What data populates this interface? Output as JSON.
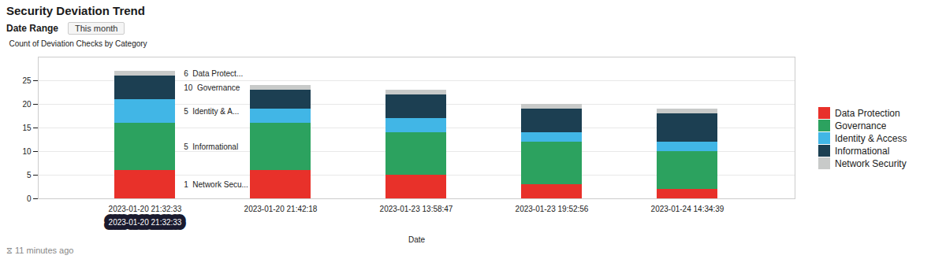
{
  "chart_data": {
    "type": "bar",
    "stacked": true,
    "title": "Security Deviation Trend",
    "subtitle": "Date Range",
    "filter": "This month",
    "caption": "⧖ 11 minutes ago",
    "xlabel": "Date",
    "ylabel": "Count of Deviation Checks by Category",
    "categories": [
      "2023-01-20 21:32:33",
      "2023-01-20 21:42:18",
      "2023-01-23 13:58:47",
      "2023-01-23 19:52:56",
      "2023-01-24 14:34:39"
    ],
    "series": [
      {
        "name": "Data Protection",
        "color": "#e8312a",
        "values": [
          6,
          6,
          5,
          3,
          2
        ]
      },
      {
        "name": "Governance",
        "color": "#2ca25f",
        "values": [
          10,
          10,
          9,
          9,
          8
        ]
      },
      {
        "name": "Identity & Access",
        "color": "#41b6e6",
        "values": [
          5,
          3,
          3,
          2,
          2
        ]
      },
      {
        "name": "Informational",
        "color": "#1c3f52",
        "values": [
          5,
          4,
          5,
          5,
          6
        ]
      },
      {
        "name": "Network Security",
        "color": "#c8cac9",
        "values": [
          1,
          1,
          1,
          1,
          1
        ]
      }
    ],
    "ylim": [
      0,
      30
    ],
    "yticks": [
      0,
      5,
      10,
      15,
      20,
      25
    ],
    "grid": true,
    "legend": "right",
    "annotations": [
      {
        "text": "1  Network Secu...",
        "x": "2023-01-20 21:32:33",
        "series": "Data Protection"
      },
      {
        "text": "5  Informational",
        "x": "2023-01-20 21:32:33",
        "series": "Governance"
      },
      {
        "text": "5  Identity & A...",
        "x": "2023-01-20 21:32:33",
        "series": "Identity & Access"
      },
      {
        "text": "10  Governance",
        "x": "2023-01-20 21:32:33",
        "series": "Informational"
      },
      {
        "text": "6  Data Protect...",
        "x": "2023-01-20 21:32:33",
        "series": "Network Security"
      },
      {
        "text": "2023-01-20 21:32:33",
        "x": "2023-01-20 21:32:33"
      }
    ]
  }
}
